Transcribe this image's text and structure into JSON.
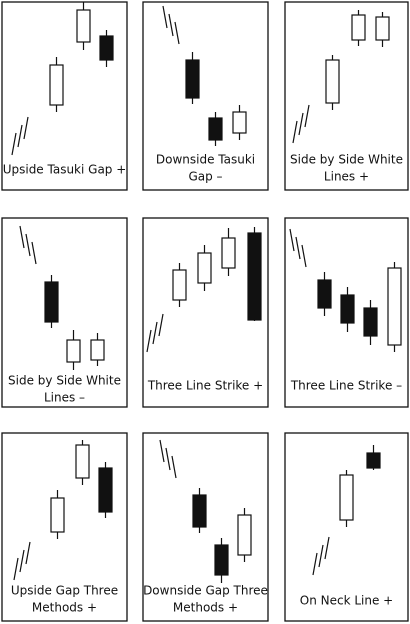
{
  "panels": [
    {
      "label": [
        "Upside Tasuki Gap +"
      ]
    },
    {
      "label": [
        "Downside Tasuki",
        "Gap –"
      ]
    },
    {
      "label": [
        "Side by Side White",
        "Lines +"
      ]
    },
    {
      "label": [
        "Side by Side White",
        "Lines –"
      ]
    },
    {
      "label": [
        "Three Line Strike +"
      ]
    },
    {
      "label": [
        "Three Line Strike –"
      ]
    },
    {
      "label": [
        "Upside Gap Three",
        "Methods +"
      ]
    },
    {
      "label": [
        "Downside Gap Three",
        "Methods +"
      ]
    },
    {
      "label": [
        "On Neck Line +"
      ]
    }
  ]
}
